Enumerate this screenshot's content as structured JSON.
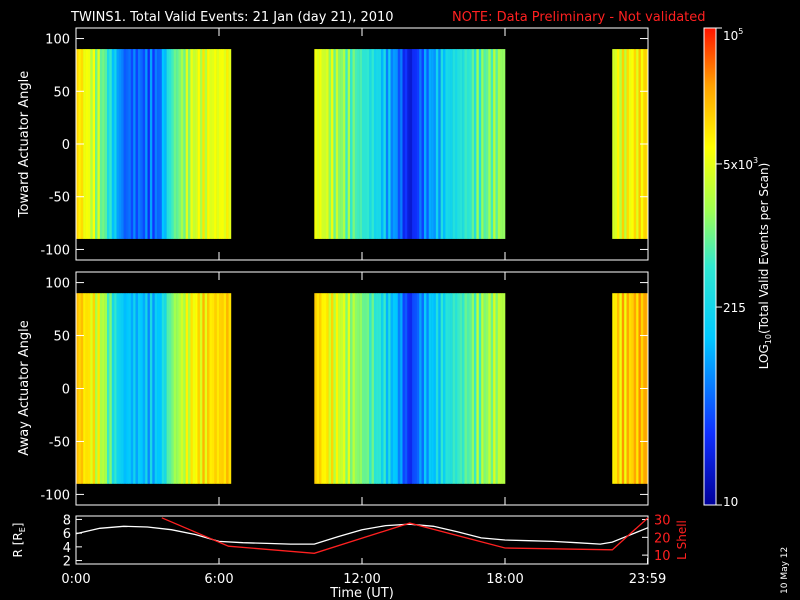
{
  "title_main": "TWINS1. Total Valid Events: 21 Jan (day  21), 2010",
  "title_note": "NOTE: Data Preliminary - Not validated",
  "date_stamp": "10 May 12",
  "colors": {
    "accent_red": "#ff2020",
    "background": "#000000",
    "axes": "#ffffff"
  },
  "chart_data": [
    {
      "type": "heatmap",
      "ylabel": "Toward Actuator Angle",
      "yticks": [
        "100",
        "50",
        "0",
        "-50",
        "-100"
      ],
      "ylim": [
        -110,
        110
      ],
      "angle_range": [
        -90,
        90
      ],
      "xlim": [
        0,
        24
      ],
      "data_intervals_hours": [
        [
          0,
          6.5
        ],
        [
          10,
          18
        ],
        [
          22.5,
          24
        ]
      ],
      "level_profile": [
        {
          "t": 0.0,
          "v": 0.82
        },
        {
          "t": 1.0,
          "v": 0.62
        },
        {
          "t": 1.5,
          "v": 0.42
        },
        {
          "t": 2.0,
          "v": 0.22
        },
        {
          "t": 3.5,
          "v": 0.22
        },
        {
          "t": 4.0,
          "v": 0.52
        },
        {
          "t": 5.0,
          "v": 0.7
        },
        {
          "t": 6.5,
          "v": 0.74
        },
        {
          "t": 10.0,
          "v": 0.74
        },
        {
          "t": 11.0,
          "v": 0.62
        },
        {
          "t": 12.5,
          "v": 0.45
        },
        {
          "t": 13.5,
          "v": 0.25
        },
        {
          "t": 14.0,
          "v": 0.08
        },
        {
          "t": 14.5,
          "v": 0.22
        },
        {
          "t": 15.5,
          "v": 0.4
        },
        {
          "t": 17.0,
          "v": 0.55
        },
        {
          "t": 18.0,
          "v": 0.62
        },
        {
          "t": 22.5,
          "v": 0.7
        },
        {
          "t": 24.0,
          "v": 0.8
        }
      ]
    },
    {
      "type": "heatmap",
      "ylabel": "Away Actuator Angle",
      "yticks": [
        "100",
        "50",
        "0",
        "-50",
        "-100"
      ],
      "ylim": [
        -110,
        110
      ],
      "angle_range": [
        -90,
        90
      ],
      "xlim": [
        0,
        24
      ],
      "data_intervals_hours": [
        [
          0,
          6.5
        ],
        [
          10,
          18
        ],
        [
          22.5,
          24
        ]
      ],
      "level_profile": [
        {
          "t": 0.0,
          "v": 0.85
        },
        {
          "t": 1.0,
          "v": 0.7
        },
        {
          "t": 1.5,
          "v": 0.5
        },
        {
          "t": 2.0,
          "v": 0.35
        },
        {
          "t": 3.5,
          "v": 0.35
        },
        {
          "t": 4.0,
          "v": 0.58
        },
        {
          "t": 5.0,
          "v": 0.76
        },
        {
          "t": 6.5,
          "v": 0.82
        },
        {
          "t": 10.0,
          "v": 0.82
        },
        {
          "t": 11.0,
          "v": 0.7
        },
        {
          "t": 12.5,
          "v": 0.52
        },
        {
          "t": 13.5,
          "v": 0.32
        },
        {
          "t": 14.0,
          "v": 0.12
        },
        {
          "t": 14.5,
          "v": 0.28
        },
        {
          "t": 15.5,
          "v": 0.45
        },
        {
          "t": 17.0,
          "v": 0.6
        },
        {
          "t": 18.0,
          "v": 0.66
        },
        {
          "t": 22.5,
          "v": 0.78
        },
        {
          "t": 24.0,
          "v": 0.86
        }
      ]
    },
    {
      "type": "line",
      "ylabel_left": "R [R",
      "ylabel_left_sub": "E",
      "ylabel_left_end": "]",
      "ylabel_right": "L Shell",
      "yticks_left": [
        "8",
        "6",
        "4",
        "2"
      ],
      "ylim_left": [
        1.5,
        8.5
      ],
      "yticks_right": [
        "30",
        "20",
        "10"
      ],
      "ylim_right": [
        5,
        32
      ],
      "xlabel": "Time (UT)",
      "xticks": [
        {
          "value": 0,
          "label": "0:00"
        },
        {
          "value": 6,
          "label": "6:00"
        },
        {
          "value": 12,
          "label": "12:00"
        },
        {
          "value": 18,
          "label": "18:00"
        },
        {
          "value": 23.98,
          "label": "23:59"
        }
      ],
      "xlim": [
        0,
        24
      ],
      "series": [
        {
          "color": "#ffffff",
          "axis": "left",
          "x": [
            0,
            1,
            2,
            3,
            4,
            5,
            6,
            7,
            8,
            9,
            10,
            11,
            12,
            13,
            14,
            15,
            16,
            17,
            18,
            19,
            20,
            21,
            22,
            22.5,
            23,
            23.5,
            24
          ],
          "y": [
            5.9,
            6.7,
            7.0,
            6.9,
            6.5,
            5.8,
            4.8,
            4.6,
            4.5,
            4.4,
            4.4,
            5.5,
            6.5,
            7.1,
            7.3,
            7.0,
            6.2,
            5.3,
            5.0,
            4.9,
            4.8,
            4.6,
            4.4,
            4.7,
            5.4,
            6.1,
            6.8
          ]
        },
        {
          "color": "#ff2020",
          "axis": "right",
          "x": [
            3.6,
            6.4,
            10,
            14,
            18,
            22.5,
            24
          ],
          "y": [
            31,
            15,
            11,
            28,
            14,
            13,
            31
          ]
        }
      ]
    }
  ],
  "colorbar": {
    "label_pre": "LOG",
    "label_sub": "10",
    "label_post": "(Total Valid  Events per Scan)",
    "ticks": [
      {
        "label": "10",
        "level": 0.0
      },
      {
        "label": "215",
        "level": 0.415
      },
      {
        "label": "5x10",
        "sup": "3",
        "level": 0.715
      },
      {
        "label": "10",
        "sup": "5",
        "level": 1.0
      }
    ]
  }
}
